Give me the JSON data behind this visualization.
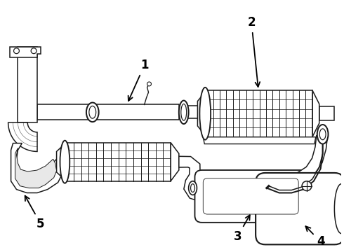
{
  "bg_color": "#ffffff",
  "lc": "#1a1a1a",
  "lw": 1.1,
  "label_fontsize": 12,
  "figsize": [
    4.9,
    3.6
  ],
  "dpi": 100
}
